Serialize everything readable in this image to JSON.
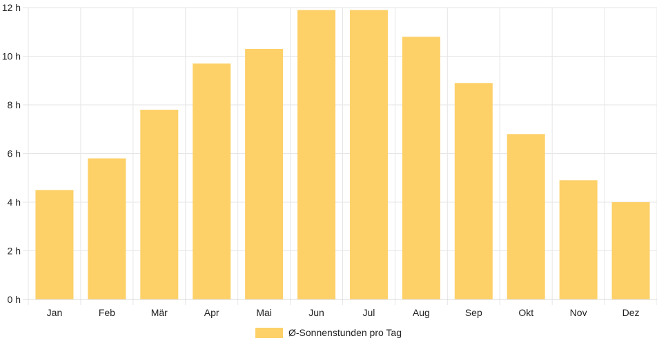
{
  "chart_data": {
    "type": "bar",
    "categories": [
      "Jan",
      "Feb",
      "Mär",
      "Apr",
      "Mai",
      "Jun",
      "Jul",
      "Aug",
      "Sep",
      "Okt",
      "Nov",
      "Dez"
    ],
    "series": [
      {
        "name": "Ø-Sonnenstunden pro Tag",
        "values": [
          4.5,
          5.8,
          7.8,
          9.7,
          10.3,
          11.9,
          11.9,
          10.8,
          8.9,
          6.8,
          4.9,
          4.0
        ]
      }
    ],
    "y_ticks": [
      "0 h",
      "2 h",
      "4 h",
      "6 h",
      "8 h",
      "10 h",
      "12 h"
    ],
    "ylim": [
      0,
      12
    ],
    "grid": true,
    "legend_position": "bottom",
    "colors": {
      "bar": "#fdd068",
      "grid": "#e6e6e6",
      "text": "#222222"
    }
  }
}
